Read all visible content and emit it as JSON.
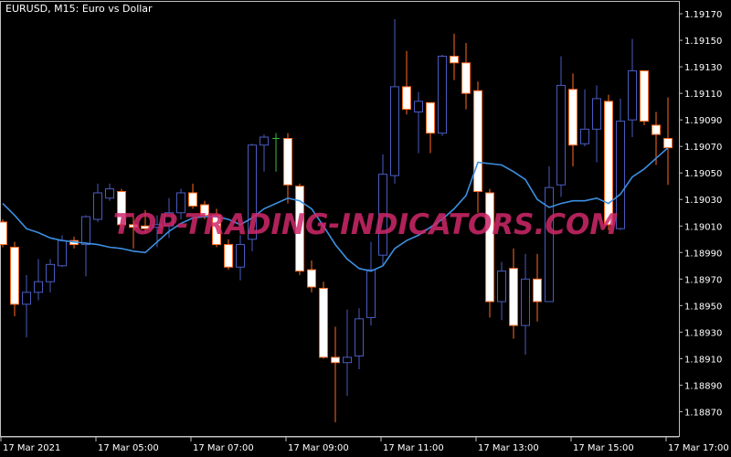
{
  "header": {
    "title": "EURUSD, M15:  Euro vs  Dollar"
  },
  "watermark": "TOP-TRADING-INDICATORS.COM",
  "colors": {
    "background": "#000000",
    "bull": "#4a5cc0",
    "bear_body": "#ffffff",
    "bear_border": "#ff6a20",
    "doji": "#2fc040",
    "ma_line": "#3d8fe0",
    "axis": "#c0c0c0"
  },
  "chart_data": {
    "type": "candlestick",
    "symbol": "EURUSD",
    "timeframe": "M15",
    "ylim": [
      1.18851,
      1.19179
    ],
    "y_ticks": [
      "1.19170",
      "1.19150",
      "1.19130",
      "1.19110",
      "1.19090",
      "1.19070",
      "1.19050",
      "1.19030",
      "1.19010",
      "1.18990",
      "1.18970",
      "1.18950",
      "1.18930",
      "1.18910",
      "1.18890",
      "1.18870"
    ],
    "x_ticks": [
      {
        "bar": 0,
        "label": "17 Mar 2021"
      },
      {
        "bar": 8,
        "label": "17 Mar 05:00"
      },
      {
        "bar": 16,
        "label": "17 Mar 07:00"
      },
      {
        "bar": 24,
        "label": "17 Mar 09:00"
      },
      {
        "bar": 32,
        "label": "17 Mar 11:00"
      },
      {
        "bar": 40,
        "label": "17 Mar 13:00"
      },
      {
        "bar": 48,
        "label": "17 Mar 15:00"
      },
      {
        "bar": 56,
        "label": "17 Mar 17:00"
      }
    ],
    "ohlc": [
      [
        1.19013,
        1.19015,
        1.18994,
        1.18996
      ],
      [
        1.18994,
        1.18998,
        1.18942,
        1.18951
      ],
      [
        1.18951,
        1.18973,
        1.18926,
        1.1896
      ],
      [
        1.1896,
        1.18985,
        1.18954,
        1.18968
      ],
      [
        1.18968,
        1.18985,
        1.1896,
        1.18981
      ],
      [
        1.1898,
        1.19003,
        1.18979,
        1.18999
      ],
      [
        1.18999,
        1.19002,
        1.18993,
        1.18996
      ],
      [
        1.18996,
        1.19018,
        1.18972,
        1.19017
      ],
      [
        1.19015,
        1.19042,
        1.19013,
        1.19035
      ],
      [
        1.19031,
        1.19042,
        1.19029,
        1.19038
      ],
      [
        1.19036,
        1.19038,
        1.19008,
        1.19011
      ],
      [
        1.19011,
        1.19018,
        1.18993,
        1.19009
      ],
      [
        1.1901,
        1.19022,
        1.19005,
        1.19008
      ],
      [
        1.19009,
        1.19018,
        1.18994,
        1.19011
      ],
      [
        1.1901,
        1.19031,
        1.19001,
        1.1902
      ],
      [
        1.1902,
        1.19038,
        1.19015,
        1.19035
      ],
      [
        1.19035,
        1.19042,
        1.19023,
        1.19025
      ],
      [
        1.19026,
        1.19029,
        1.19015,
        1.19018
      ],
      [
        1.19018,
        1.19023,
        1.18994,
        1.18996
      ],
      [
        1.18996,
        1.19,
        1.18977,
        1.18979
      ],
      [
        1.18979,
        1.19003,
        1.18969,
        1.18996
      ],
      [
        1.19,
        1.19072,
        1.18991,
        1.19071
      ],
      [
        1.19071,
        1.19079,
        1.19051,
        1.19077
      ],
      [
        1.19076,
        1.1908,
        1.19051,
        1.19076
      ],
      [
        1.19076,
        1.1908,
        1.19027,
        1.19041
      ],
      [
        1.1904,
        1.19042,
        1.18973,
        1.18976
      ],
      [
        1.18977,
        1.18984,
        1.1896,
        1.18964
      ],
      [
        1.18963,
        1.18968,
        1.1891,
        1.18911
      ],
      [
        1.18911,
        1.18934,
        1.18862,
        1.18907
      ],
      [
        1.18907,
        1.18947,
        1.18882,
        1.18911
      ],
      [
        1.18912,
        1.18948,
        1.18902,
        1.1894
      ],
      [
        1.18941,
        1.18998,
        1.18935,
        1.18977
      ],
      [
        1.18988,
        1.19064,
        1.1898,
        1.19049
      ],
      [
        1.19048,
        1.19166,
        1.19042,
        1.19115
      ],
      [
        1.19115,
        1.19142,
        1.19094,
        1.19098
      ],
      [
        1.19096,
        1.19111,
        1.19065,
        1.19104
      ],
      [
        1.19103,
        1.19103,
        1.19065,
        1.1908
      ],
      [
        1.1908,
        1.19139,
        1.19078,
        1.19138
      ],
      [
        1.19138,
        1.19155,
        1.1912,
        1.19133
      ],
      [
        1.19133,
        1.19148,
        1.19098,
        1.1911
      ],
      [
        1.19112,
        1.19119,
        1.1902,
        1.19036
      ],
      [
        1.19035,
        1.19038,
        1.18941,
        1.18953
      ],
      [
        1.18953,
        1.18983,
        1.18939,
        1.18976
      ],
      [
        1.18978,
        1.18993,
        1.18925,
        1.18935
      ],
      [
        1.18935,
        1.18989,
        1.18913,
        1.1897
      ],
      [
        1.1897,
        1.18989,
        1.18938,
        1.18953
      ],
      [
        1.18953,
        1.19055,
        1.18953,
        1.19039
      ],
      [
        1.19041,
        1.19138,
        1.19032,
        1.19116
      ],
      [
        1.19113,
        1.19125,
        1.19055,
        1.19071
      ],
      [
        1.19072,
        1.19113,
        1.1907,
        1.19083
      ],
      [
        1.19083,
        1.19116,
        1.19058,
        1.19106
      ],
      [
        1.19104,
        1.19109,
        1.19007,
        1.19011
      ],
      [
        1.19008,
        1.19106,
        1.19007,
        1.19089
      ],
      [
        1.1909,
        1.19151,
        1.19077,
        1.19127
      ],
      [
        1.19127,
        1.19127,
        1.19086,
        1.19089
      ],
      [
        1.19086,
        1.19096,
        1.19056,
        1.19079
      ],
      [
        1.19076,
        1.19107,
        1.19041,
        1.19069
      ]
    ],
    "moving_average": [
      1.19027,
      1.19018,
      1.19008,
      1.19005,
      1.19001,
      1.18999,
      1.18998,
      1.18997,
      1.18996,
      1.18994,
      1.18993,
      1.18991,
      1.1899,
      1.18998,
      1.19006,
      1.19012,
      1.19016,
      1.19017,
      1.19017,
      1.19015,
      1.19011,
      1.19016,
      1.19023,
      1.19027,
      1.19031,
      1.19029,
      1.19023,
      1.1901,
      1.18996,
      1.18985,
      1.18978,
      1.18976,
      1.1898,
      1.18993,
      1.18999,
      1.19003,
      1.19009,
      1.19015,
      1.19023,
      1.19033,
      1.19058,
      1.19057,
      1.19056,
      1.19051,
      1.19045,
      1.1903,
      1.19024,
      1.19027,
      1.19029,
      1.19029,
      1.19031,
      1.19027,
      1.19034,
      1.19047,
      1.19053,
      1.19061,
      1.19069
    ]
  }
}
